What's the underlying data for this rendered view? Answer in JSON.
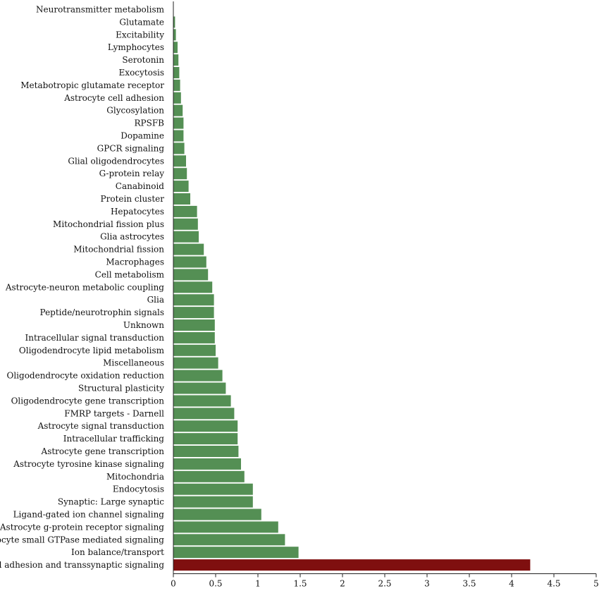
{
  "chart_data": {
    "type": "bar",
    "orientation": "horizontal",
    "title": "",
    "xlabel": "",
    "ylabel": "",
    "xlim": [
      0,
      5
    ],
    "xticks": [
      "0",
      "0.5",
      "1",
      "1.5",
      "2",
      "2.5",
      "3",
      "3.5",
      "4",
      "4.5",
      "5"
    ],
    "grid": false,
    "colors": {
      "default": "#548f54",
      "highlight": "#7f0f0f"
    },
    "categories": [
      "Neurotransmitter metabolism",
      "Glutamate",
      "Excitability",
      "Lymphocytes",
      "Serotonin",
      "Exocytosis",
      "Metabotropic glutamate receptor",
      "Astrocyte cell adhesion",
      "Glycosylation",
      "RPSFB",
      "Dopamine",
      "GPCR signaling",
      "Glial oligodendrocytes",
      "G-protein relay",
      "Canabinoid",
      "Protein cluster",
      "Hepatocytes",
      "Mitochondrial fission plus",
      "Glia astrocytes",
      "Mitochondrial fission",
      "Macrophages",
      "Cell metabolism",
      "Astrocyte-neuron metabolic coupling",
      "Glia",
      "Peptide/neurotrophin signals",
      "Unknown",
      "Intracellular signal transduction",
      "Oligodendrocyte lipid metabolism",
      "Miscellaneous",
      "Oligodendrocyte oxidation reduction",
      "Structural plasticity",
      "Oligodendrocyte gene transcription",
      "FMRP targets - Darnell",
      "Astrocyte signal transduction",
      "Intracellular trafficking",
      "Astrocyte gene transcription",
      "Astrocyte tyrosine kinase signaling",
      "Mitochondria",
      "Endocytosis",
      "Synaptic: Large synaptic",
      "Ligand-gated ion channel signaling",
      "Astrocyte g-protein receptor signaling",
      "Astrocyte small GTPase mediated signaling",
      "Ion balance/transport",
      "Cell adhesion and transsynaptic signaling"
    ],
    "values": [
      0.0,
      0.02,
      0.03,
      0.05,
      0.06,
      0.07,
      0.08,
      0.09,
      0.11,
      0.12,
      0.12,
      0.13,
      0.15,
      0.16,
      0.18,
      0.2,
      0.28,
      0.29,
      0.3,
      0.36,
      0.39,
      0.41,
      0.46,
      0.48,
      0.48,
      0.49,
      0.49,
      0.5,
      0.53,
      0.58,
      0.62,
      0.68,
      0.72,
      0.76,
      0.76,
      0.77,
      0.8,
      0.84,
      0.94,
      0.94,
      1.04,
      1.24,
      1.32,
      1.48,
      4.22
    ],
    "highlight_index": 44
  }
}
